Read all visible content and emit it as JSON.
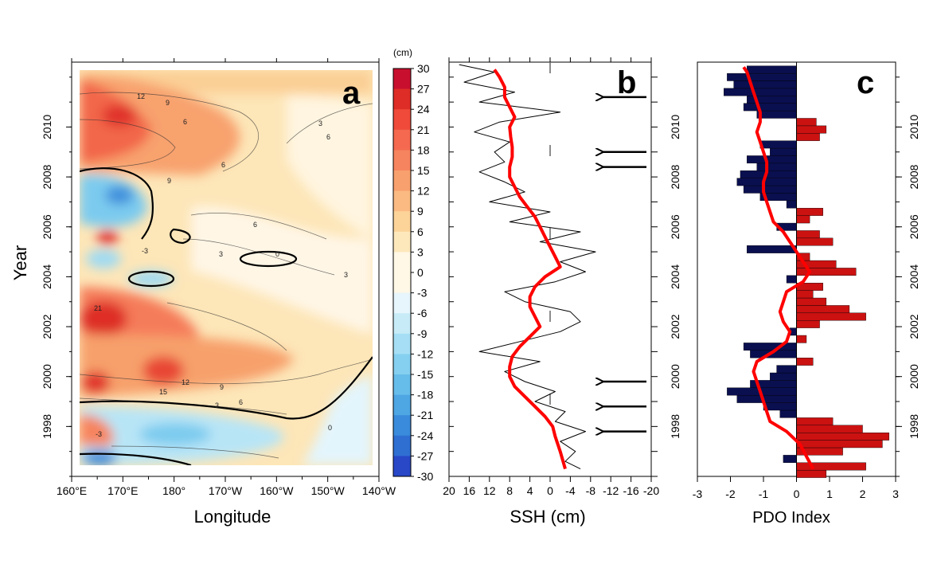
{
  "chart_data": [
    {
      "type": "heatmap",
      "panel_letter": "a",
      "xlabel": "Longitude",
      "ylabel": "Year",
      "x_ticks": [
        "160°E",
        "170°E",
        "180°",
        "170°W",
        "160°W",
        "150°W",
        "140°W"
      ],
      "y_ticks": [
        "1998",
        "2000",
        "2002",
        "2004",
        "2006",
        "2008",
        "2010"
      ],
      "colorbar_unit": "(cm)",
      "colorbar_ticks": [
        "30",
        "27",
        "24",
        "21",
        "18",
        "15",
        "12",
        "9",
        "6",
        "3",
        "0",
        "-3",
        "-6",
        "-9",
        "-12",
        "-15",
        "-18",
        "-21",
        "-24",
        "-27",
        "-30"
      ],
      "colors": {
        "30": "#a50f15",
        "27": "#c8102e",
        "24": "#de2d26",
        "21": "#ef4a3a",
        "18": "#f4694f",
        "15": "#f6845f",
        "12": "#f8a06e",
        "9": "#fbba82",
        "6": "#fcd49a",
        "3": "#fde8bc",
        "0": "#fff8e6",
        "-3": "#e6f6fc",
        "-6": "#c7ecf8",
        "-9": "#a6dff5",
        "-12": "#85d0f0",
        "-15": "#67bdea",
        "-18": "#4ea6e3",
        "-21": "#3a8bdb",
        "-24": "#2f6fd2",
        "-27": "#2848c8",
        "-30": "#1f1fbe"
      },
      "contour_labels": [
        "12",
        "9",
        "6",
        "3",
        "6",
        "6",
        "9",
        "6",
        "3",
        "0",
        "3",
        "-3",
        "21",
        "15",
        "12",
        "9",
        "6",
        "3",
        "0",
        "-3"
      ]
    },
    {
      "type": "line",
      "panel_letter": "b",
      "xlabel": "SSH (cm)",
      "x_ticks": [
        "20",
        "16",
        "12",
        "8",
        "4",
        "0",
        "-4",
        "-8",
        "-12",
        "-16",
        "-20"
      ],
      "xlim": [
        20,
        -20
      ],
      "ylim": [
        1996.0,
        2012.6
      ],
      "series": [
        {
          "role": "monthly",
          "color": "#000000",
          "x": [
            1996.3,
            1996.6,
            1997.0,
            1997.4,
            1997.8,
            1998.2,
            1998.6,
            1999.0,
            1999.4,
            1999.8,
            2000.2,
            2000.6,
            2001.0,
            2001.4,
            2001.8,
            2002.2,
            2002.6,
            2003.0,
            2003.4,
            2003.8,
            2004.2,
            2004.6,
            2005.0,
            2005.4,
            2005.8,
            2006.2,
            2006.6,
            2007.0,
            2007.4,
            2007.8,
            2008.2,
            2008.6,
            2009.0,
            2009.4,
            2009.8,
            2010.2,
            2010.6,
            2011.0,
            2011.4,
            2011.8,
            2012.2,
            2012.5
          ],
          "y": [
            -6,
            -3,
            -5,
            -2,
            -7,
            -1,
            -3,
            3,
            -1,
            5,
            9,
            2,
            14,
            6,
            -2,
            -6,
            -4,
            5,
            9,
            -1,
            -7,
            -2,
            -9,
            2,
            -6,
            8,
            0,
            12,
            5,
            9,
            14,
            9,
            11,
            8,
            15,
            10,
            -2,
            14,
            7,
            17,
            11,
            18
          ]
        },
        {
          "role": "smoothed",
          "color": "#ff0000",
          "x": [
            1996.3,
            1997.0,
            1997.6,
            1998.0,
            1998.4,
            1998.8,
            1999.2,
            1999.6,
            2000.0,
            2000.4,
            2000.8,
            2001.2,
            2001.6,
            2002.0,
            2002.4,
            2002.8,
            2003.2,
            2003.6,
            2004.0,
            2004.4,
            2004.8,
            2005.2,
            2005.6,
            2006.0,
            2006.4,
            2006.8,
            2007.2,
            2007.6,
            2008.0,
            2008.4,
            2008.8,
            2009.2,
            2009.6,
            2010.0,
            2010.4,
            2010.8,
            2011.2,
            2011.6,
            2012.0,
            2012.3
          ],
          "y": [
            -3,
            -2,
            -1,
            -0.5,
            1,
            3,
            5,
            7,
            8,
            8,
            7.5,
            6,
            4,
            2,
            3,
            4,
            4,
            3,
            1,
            -2,
            -1,
            0,
            1,
            2,
            3,
            4.5,
            6,
            7,
            8,
            8,
            7.5,
            7.5,
            7.8,
            8,
            7,
            8,
            9,
            9,
            10,
            11
          ]
        }
      ],
      "arrows_at_years": [
        2011.2,
        2009.0,
        2008.4,
        1999.8,
        1998.8,
        1997.8
      ]
    },
    {
      "type": "bar",
      "panel_letter": "c",
      "xlabel": "PDO Index",
      "x_ticks": [
        "-3",
        "-2",
        "-1",
        "0",
        "1",
        "2",
        "3"
      ],
      "xlim": [
        -3,
        3
      ],
      "y_ticks": [
        "1998",
        "2000",
        "2002",
        "2004",
        "2006",
        "2008",
        "2010"
      ],
      "ylim": [
        1996.0,
        2012.6
      ],
      "colors": {
        "positive": "#cc1111",
        "negative": "#0a0f50",
        "smooth": "#ff0000"
      },
      "years": [
        1996.1,
        1996.4,
        1996.7,
        1997.0,
        1997.3,
        1997.6,
        1997.9,
        1998.2,
        1998.5,
        1998.8,
        1999.1,
        1999.4,
        1999.7,
        2000.0,
        2000.3,
        2000.6,
        2000.9,
        2001.2,
        2001.5,
        2001.8,
        2002.1,
        2002.4,
        2002.7,
        2003.0,
        2003.3,
        2003.6,
        2003.9,
        2004.2,
        2004.5,
        2004.8,
        2005.1,
        2005.4,
        2005.7,
        2006.0,
        2006.3,
        2006.6,
        2006.9,
        2007.2,
        2007.5,
        2007.8,
        2008.1,
        2008.4,
        2008.7,
        2009.0,
        2009.3,
        2009.6,
        2009.9,
        2010.2,
        2010.5,
        2010.8,
        2011.1,
        2011.4,
        2011.7,
        2012.0,
        2012.3
      ],
      "values": [
        0.9,
        2.1,
        -0.4,
        1.4,
        2.6,
        2.8,
        2.0,
        1.1,
        -0.5,
        -1.0,
        -1.8,
        -2.1,
        -1.4,
        -0.8,
        -0.6,
        0.5,
        -1.4,
        -1.6,
        0.3,
        -0.2,
        0.7,
        2.1,
        1.6,
        0.9,
        0.5,
        0.8,
        -0.3,
        1.8,
        1.2,
        0.4,
        -1.5,
        1.1,
        0.7,
        -0.6,
        0.4,
        0.8,
        -0.3,
        -1.1,
        -1.6,
        -1.8,
        -1.7,
        -1.2,
        -1.5,
        -0.8,
        -1.1,
        0.7,
        0.9,
        0.6,
        -1.2,
        -1.6,
        -1.5,
        -2.2,
        -1.9,
        -2.1,
        -1.5
      ],
      "smooth_years": [
        1996.3,
        1996.8,
        1997.3,
        1997.8,
        1998.2,
        1998.6,
        1999.0,
        1999.4,
        1999.8,
        2000.2,
        2000.6,
        2001.0,
        2001.4,
        2001.8,
        2002.2,
        2002.6,
        2003.0,
        2003.4,
        2003.8,
        2004.2,
        2004.6,
        2005.0,
        2005.4,
        2005.8,
        2006.2,
        2006.6,
        2007.0,
        2007.4,
        2007.8,
        2008.2,
        2008.6,
        2009.0,
        2009.4,
        2009.8,
        2010.2,
        2010.6,
        2011.0,
        2011.4,
        2011.8,
        2012.2,
        2012.4
      ],
      "smooth_values": [
        0.5,
        0.3,
        0.1,
        -0.3,
        -0.8,
        -0.9,
        -1.0,
        -1.1,
        -1.2,
        -1.3,
        -1.2,
        -0.7,
        -0.3,
        -0.2,
        -0.4,
        -0.5,
        -0.4,
        -0.3,
        0.2,
        0.4,
        0.2,
        0.0,
        -0.2,
        -0.4,
        -0.7,
        -0.8,
        -0.9,
        -1.0,
        -1.0,
        -0.9,
        -0.9,
        -1.0,
        -1.1,
        -1.2,
        -1.1,
        -1.1,
        -1.2,
        -1.3,
        -1.4,
        -1.5,
        -1.6
      ]
    }
  ]
}
